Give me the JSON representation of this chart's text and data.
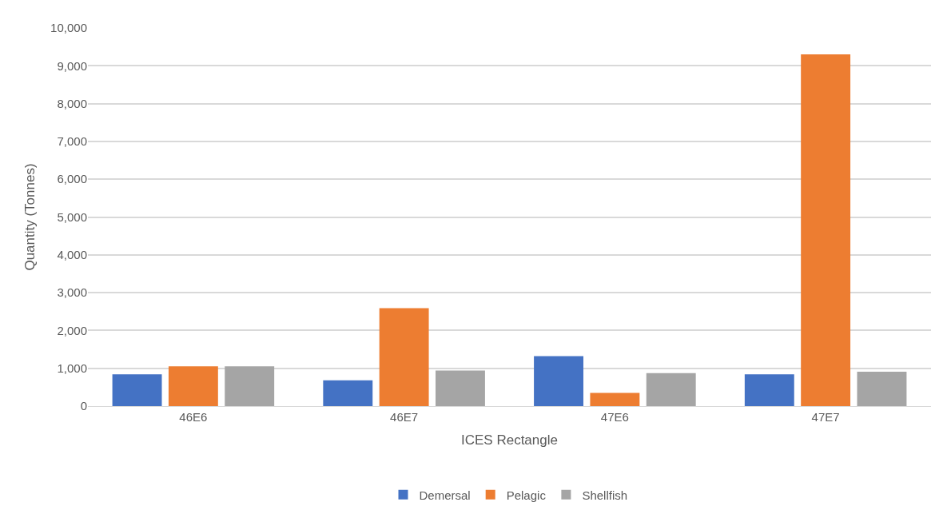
{
  "chart_data": {
    "type": "bar",
    "xlabel": "ICES Rectangle",
    "ylabel": "Quantity (Tonnes)",
    "categories": [
      "46E6",
      "46E7",
      "47E6",
      "47E7"
    ],
    "series": [
      {
        "name": "Demersal",
        "color": "#4472c4",
        "values": [
          840,
          680,
          1320,
          840
        ]
      },
      {
        "name": "Pelagic",
        "color": "#ed7d31",
        "values": [
          1050,
          2590,
          350,
          9300
        ]
      },
      {
        "name": "Shellfish",
        "color": "#a5a5a5",
        "values": [
          1050,
          940,
          870,
          910
        ]
      }
    ],
    "ylim": [
      0,
      10000
    ],
    "yticks": [
      {
        "value": 0,
        "label": "0"
      },
      {
        "value": 1000,
        "label": "1,000"
      },
      {
        "value": 2000,
        "label": "2,000"
      },
      {
        "value": 3000,
        "label": "3,000"
      },
      {
        "value": 4000,
        "label": "4,000"
      },
      {
        "value": 5000,
        "label": "5,000"
      },
      {
        "value": 6000,
        "label": "6,000"
      },
      {
        "value": 7000,
        "label": "7,000"
      },
      {
        "value": 8000,
        "label": "8,000"
      },
      {
        "value": 9000,
        "label": "9,000"
      },
      {
        "value": 10000,
        "label": "10,000"
      }
    ],
    "grid": "y",
    "legend": "bottom"
  }
}
